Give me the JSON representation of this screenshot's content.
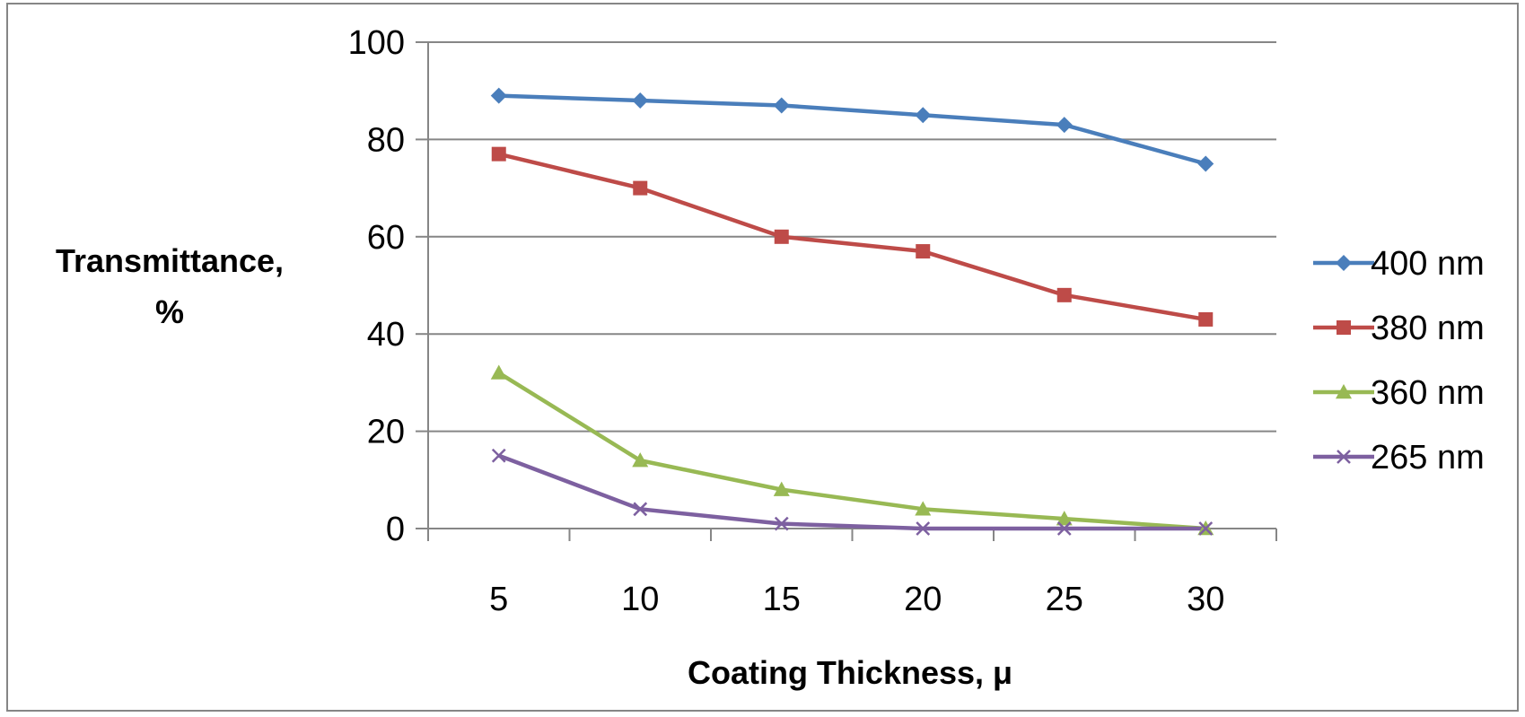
{
  "chart_data": {
    "type": "line",
    "title": "",
    "xlabel": "Coating Thickness, μ",
    "ylabel_lines": [
      "Transmittance,",
      "%"
    ],
    "categories": [
      "5",
      "10",
      "15",
      "20",
      "25",
      "30"
    ],
    "yticks": [
      "0",
      "20",
      "40",
      "60",
      "80",
      "100"
    ],
    "ylim": [
      0,
      100
    ],
    "grid": true,
    "legend_position": "right",
    "series": [
      {
        "name": "400 nm",
        "color": "#4A7EBB",
        "marker": "diamond",
        "values": [
          89,
          88,
          87,
          85,
          83,
          75
        ]
      },
      {
        "name": "380 nm",
        "color": "#BE4B48",
        "marker": "square",
        "values": [
          77,
          70,
          60,
          57,
          48,
          43
        ]
      },
      {
        "name": "360 nm",
        "color": "#98B954",
        "marker": "triangle",
        "values": [
          32,
          14,
          8,
          4,
          2,
          0
        ]
      },
      {
        "name": "265 nm",
        "color": "#7D60A0",
        "marker": "x",
        "values": [
          15,
          4,
          1,
          0,
          0,
          0
        ]
      }
    ]
  }
}
